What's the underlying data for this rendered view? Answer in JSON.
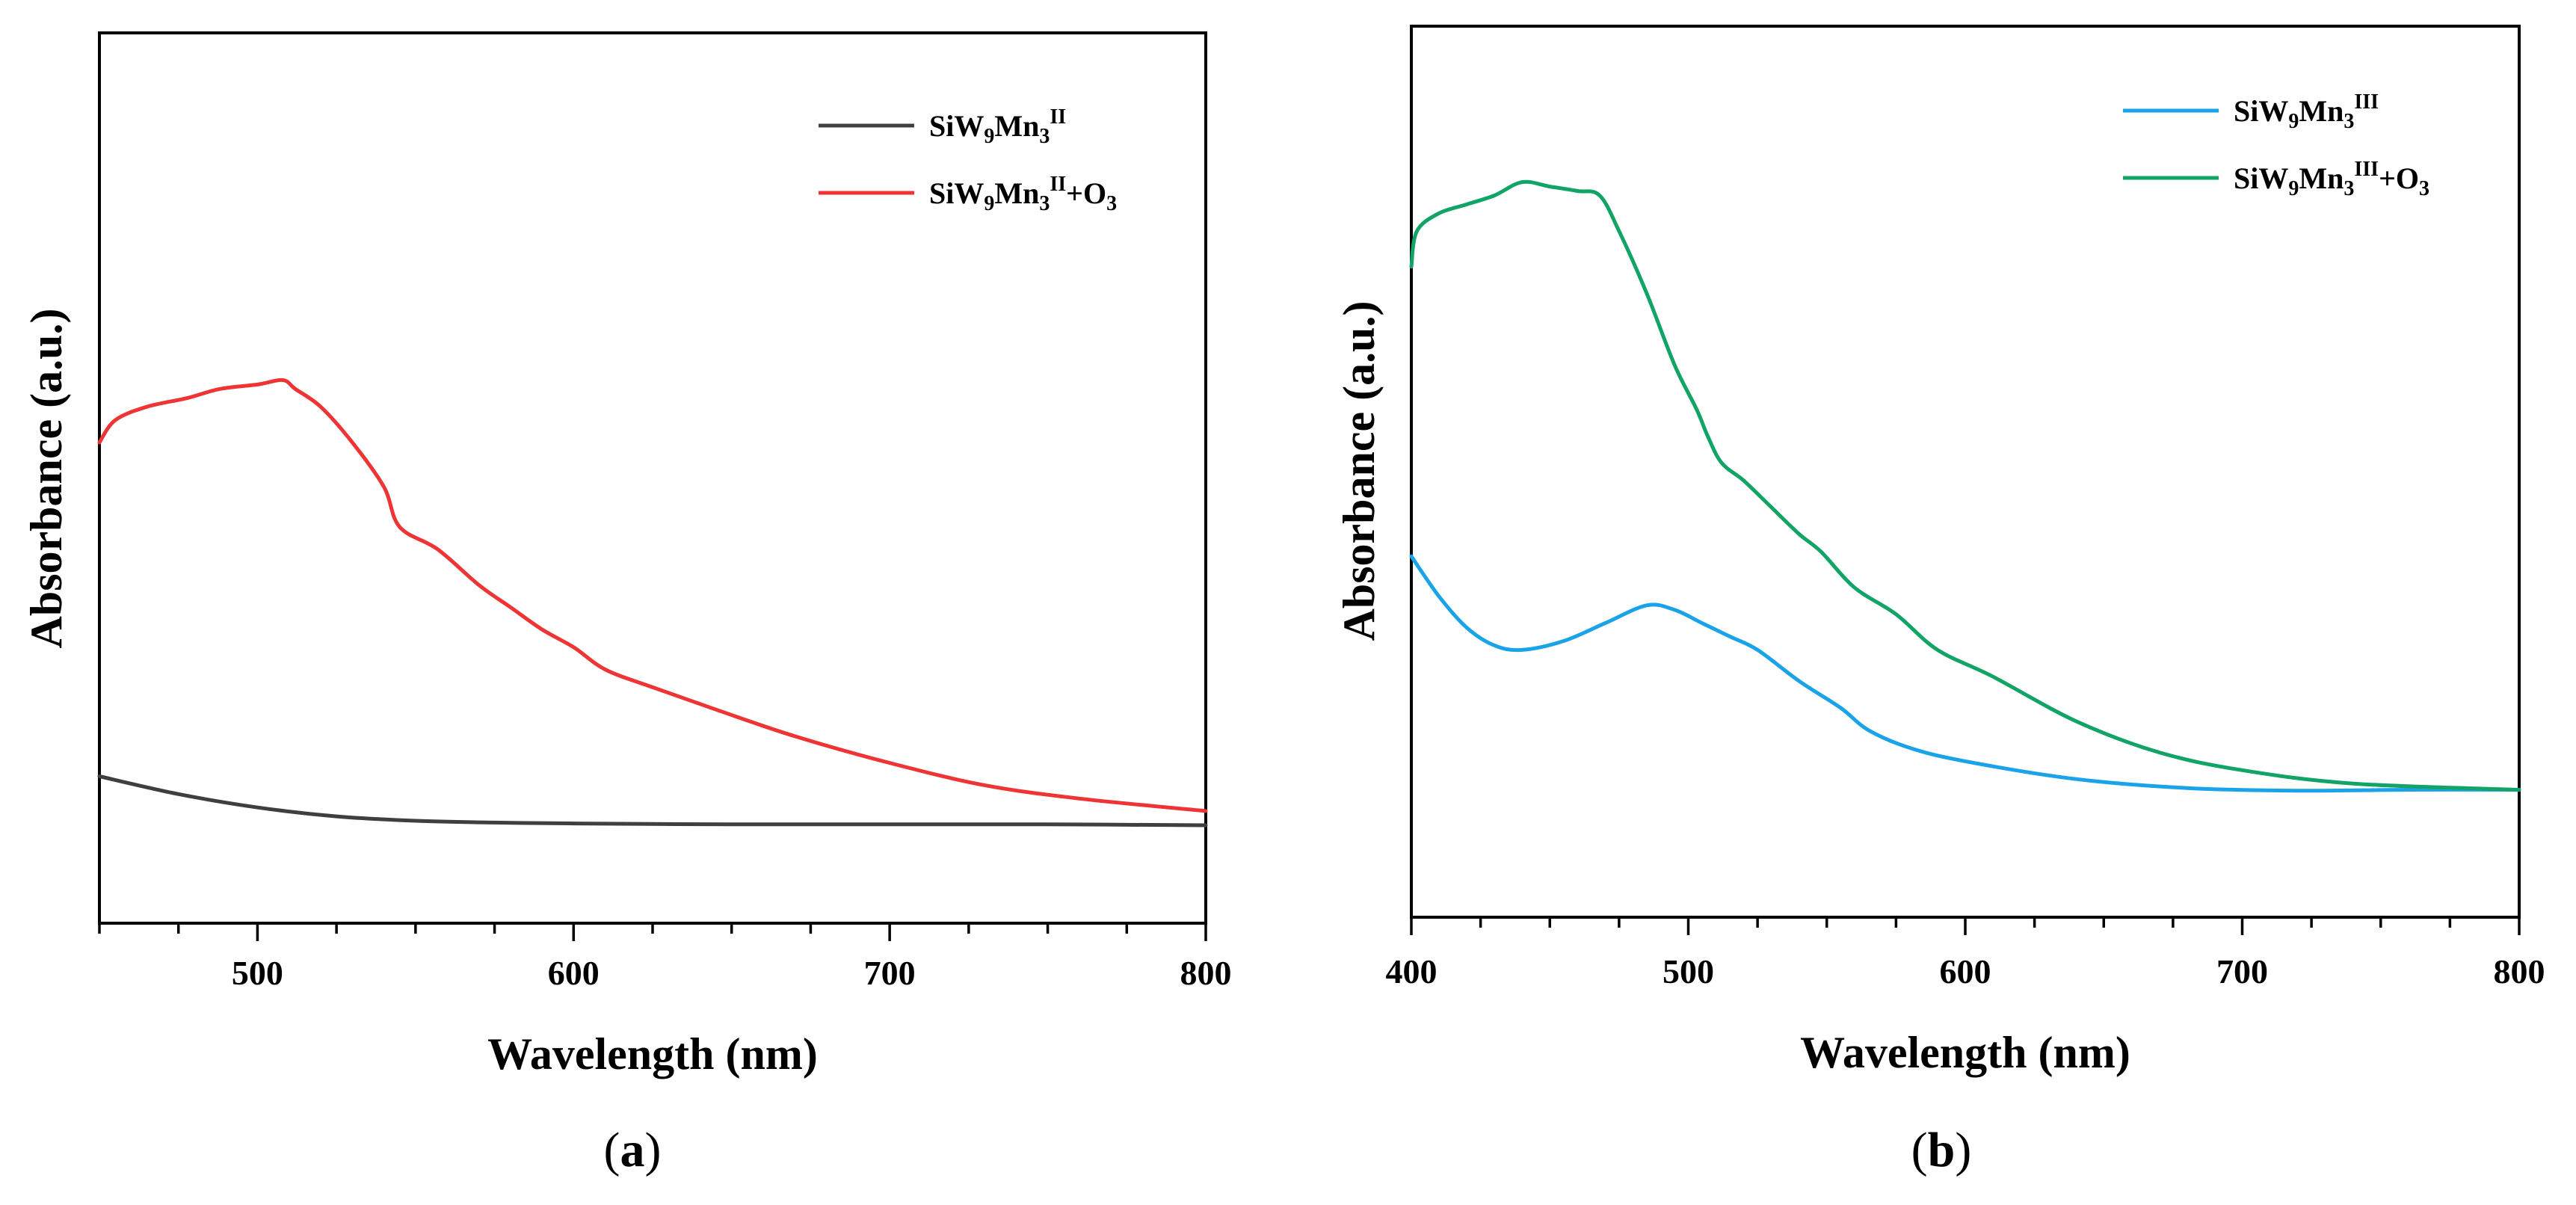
{
  "chart_data": [
    {
      "type": "line",
      "panel_label": "a",
      "xlabel": "Wavelength (nm)",
      "ylabel": "Absorbance (a.u.)",
      "xlim": [
        450,
        800
      ],
      "ylim": [
        0,
        1
      ],
      "x_ticks": [
        500,
        600,
        700,
        800
      ],
      "y_ticks_shown": false,
      "legend_position": "top-right",
      "series": [
        {
          "name": "SiW9Mn3II",
          "legend": {
            "base": "SiW",
            "s1": "9",
            "mid": "Mn",
            "s2": "3",
            "sup": "II",
            "tail": ""
          },
          "color": "#3f3f3f",
          "x": [
            450,
            475,
            500,
            525,
            550,
            575,
            600,
            650,
            700,
            750,
            800
          ],
          "y": [
            0.165,
            0.145,
            0.13,
            0.12,
            0.115,
            0.113,
            0.112,
            0.111,
            0.111,
            0.111,
            0.11
          ]
        },
        {
          "name": "SiW9Mn3II+O3",
          "legend": {
            "base": "SiW",
            "s1": "9",
            "mid": "Mn",
            "s2": "3",
            "sup": "II",
            "tail": "+O",
            "s3": "3"
          },
          "color": "#ee3434",
          "x": [
            450,
            455,
            465,
            478,
            488,
            500,
            508,
            512,
            520,
            530,
            540,
            545,
            557,
            570,
            580,
            590,
            600,
            610,
            625,
            645,
            670,
            700,
            730,
            760,
            800
          ],
          "y": [
            0.54,
            0.565,
            0.58,
            0.59,
            0.6,
            0.605,
            0.61,
            0.6,
            0.58,
            0.54,
            0.49,
            0.445,
            0.42,
            0.38,
            0.355,
            0.33,
            0.31,
            0.285,
            0.265,
            0.24,
            0.21,
            0.18,
            0.155,
            0.14,
            0.126
          ]
        }
      ]
    },
    {
      "type": "line",
      "panel_label": "b",
      "xlabel": "Wavelength (nm)",
      "ylabel": "Absorbance (a.u.)",
      "xlim": [
        400,
        800
      ],
      "ylim": [
        0,
        1
      ],
      "x_ticks": [
        400,
        500,
        600,
        700,
        800
      ],
      "y_ticks_shown": false,
      "legend_position": "top-right",
      "series": [
        {
          "name": "SiW9Mn3III",
          "legend": {
            "base": "SiW",
            "s1": "9",
            "mid": "Mn",
            "s2": "3",
            "sup": "III",
            "tail": ""
          },
          "color": "#1aa3e8",
          "x": [
            400,
            410,
            420,
            430,
            440,
            455,
            470,
            485,
            495,
            505,
            515,
            525,
            540,
            555,
            565,
            580,
            600,
            640,
            680,
            720,
            760,
            800
          ],
          "y": [
            0.405,
            0.36,
            0.325,
            0.305,
            0.3,
            0.31,
            0.33,
            0.35,
            0.345,
            0.33,
            0.315,
            0.3,
            0.265,
            0.235,
            0.21,
            0.19,
            0.175,
            0.155,
            0.145,
            0.142,
            0.143,
            0.143
          ]
        },
        {
          "name": "SiW9Mn3III+O3",
          "legend": {
            "base": "SiW",
            "s1": "9",
            "mid": "Mn",
            "s2": "3",
            "sup": "III",
            "tail": "+O",
            "s3": "3"
          },
          "color": "#12a366",
          "x": [
            400,
            402,
            410,
            420,
            430,
            440,
            450,
            460,
            468,
            475,
            485,
            495,
            503,
            507,
            512,
            520,
            530,
            540,
            548,
            560,
            575,
            590,
            610,
            640,
            670,
            700,
            740,
            800
          ],
          "y": [
            0.73,
            0.77,
            0.79,
            0.8,
            0.81,
            0.825,
            0.82,
            0.815,
            0.81,
            0.77,
            0.7,
            0.62,
            0.57,
            0.54,
            0.51,
            0.49,
            0.46,
            0.43,
            0.41,
            0.37,
            0.34,
            0.3,
            0.27,
            0.22,
            0.185,
            0.165,
            0.15,
            0.143
          ]
        }
      ]
    }
  ]
}
